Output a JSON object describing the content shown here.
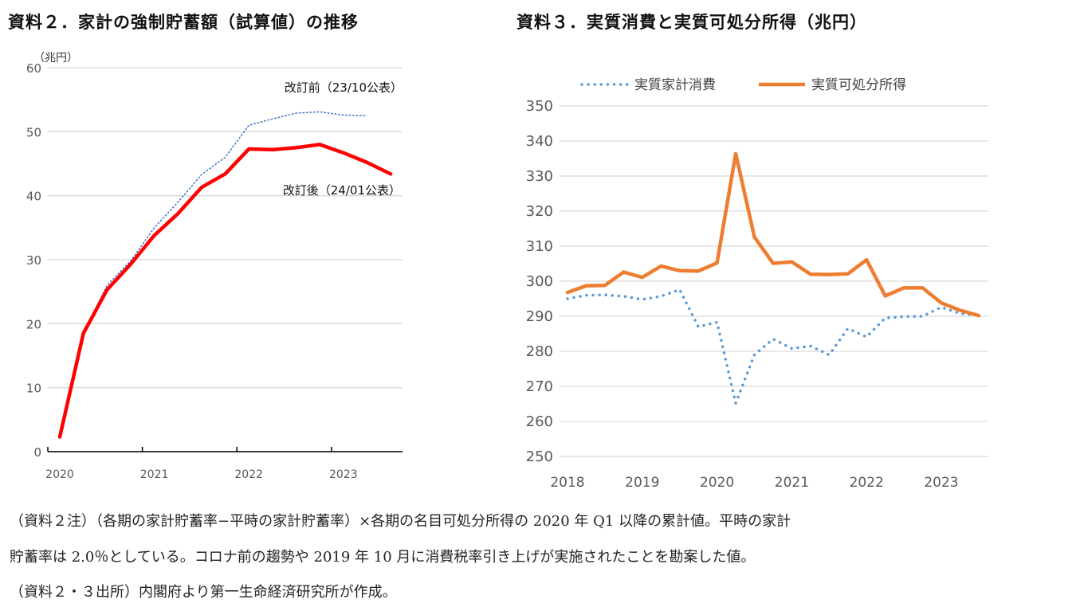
{
  "left": {
    "title": "資料２．家計の強制貯蓄額（試算値）の推移",
    "unit": "（兆円）"
  },
  "right": {
    "title": "資料３．実質消費と実質可処分所得（兆円）"
  },
  "notes": [
    "（資料２注）（各期の家計貯蓄率−平時の家計貯蓄率）×各期の名目可処分所得の 2020 年 Q1 以降の累計値。平時の家計",
    "貯蓄率は 2.0％としている。コロナ前の趨勢や 2019 年 10 月に消費税率引き上げが実施されたことを勘案した値。",
    "（資料２・３出所）内閣府より第一生命経済研究所が作成。"
  ],
  "chart_data": [
    {
      "type": "line",
      "ylabel": "（兆円）",
      "ylim": [
        0,
        60
      ],
      "yticks": [
        0,
        10,
        20,
        30,
        40,
        50,
        60
      ],
      "xticks": [
        "2020",
        "2021",
        "2022",
        "2023"
      ],
      "grid": true,
      "x": [
        "2020Q1",
        "2020Q2",
        "2020Q3",
        "2020Q4",
        "2021Q1",
        "2021Q2",
        "2021Q3",
        "2021Q4",
        "2022Q1",
        "2022Q2",
        "2022Q3",
        "2022Q4",
        "2023Q1",
        "2023Q2",
        "2023Q3"
      ],
      "series": [
        {
          "name": "改訂前（23/10公表）",
          "color": "#4472c4",
          "style": "dotted",
          "values": [
            2.3,
            18.5,
            26.0,
            29.8,
            35.0,
            39.0,
            43.3,
            46.0,
            51.0,
            52.0,
            52.9,
            53.1,
            52.6,
            52.5,
            null
          ]
        },
        {
          "name": "改訂後（24/01公表）",
          "color": "#ff0000",
          "style": "solid",
          "values": [
            2.3,
            18.5,
            25.3,
            29.3,
            33.8,
            37.2,
            41.3,
            43.4,
            47.3,
            47.2,
            47.5,
            48.0,
            46.7,
            45.2,
            43.4
          ]
        }
      ]
    },
    {
      "type": "line",
      "ylim": [
        250,
        350
      ],
      "yticks": [
        250,
        260,
        270,
        280,
        290,
        300,
        310,
        320,
        330,
        340,
        350
      ],
      "xticks": [
        "2018",
        "2019",
        "2020",
        "2021",
        "2022",
        "2023"
      ],
      "grid": true,
      "legend": "top",
      "x": [
        "2018Q1",
        "2018Q2",
        "2018Q3",
        "2018Q4",
        "2019Q1",
        "2019Q2",
        "2019Q3",
        "2019Q4",
        "2020Q1",
        "2020Q2",
        "2020Q3",
        "2020Q4",
        "2021Q1",
        "2021Q2",
        "2021Q3",
        "2021Q4",
        "2022Q1",
        "2022Q2",
        "2022Q3",
        "2022Q4",
        "2023Q1",
        "2023Q2",
        "2023Q3"
      ],
      "series": [
        {
          "name": "実質家計消費",
          "color": "#5b9bd5",
          "style": "dotted",
          "values": [
            295.0,
            296.0,
            296.1,
            295.7,
            294.8,
            295.7,
            297.6,
            287.0,
            288.3,
            265.2,
            279.0,
            283.5,
            280.8,
            281.5,
            279.0,
            286.5,
            284.1,
            289.5,
            289.9,
            290.0,
            292.6,
            290.8,
            290.2
          ]
        },
        {
          "name": "実質可処分所得",
          "color": "#ed7d31",
          "style": "solid",
          "values": [
            296.8,
            298.7,
            298.8,
            302.6,
            301.1,
            304.3,
            303.0,
            302.9,
            305.2,
            336.4,
            312.6,
            305.1,
            305.5,
            302.0,
            301.9,
            302.1,
            306.1,
            295.8,
            298.1,
            298.1,
            293.8,
            291.7,
            290.2
          ]
        }
      ]
    }
  ]
}
